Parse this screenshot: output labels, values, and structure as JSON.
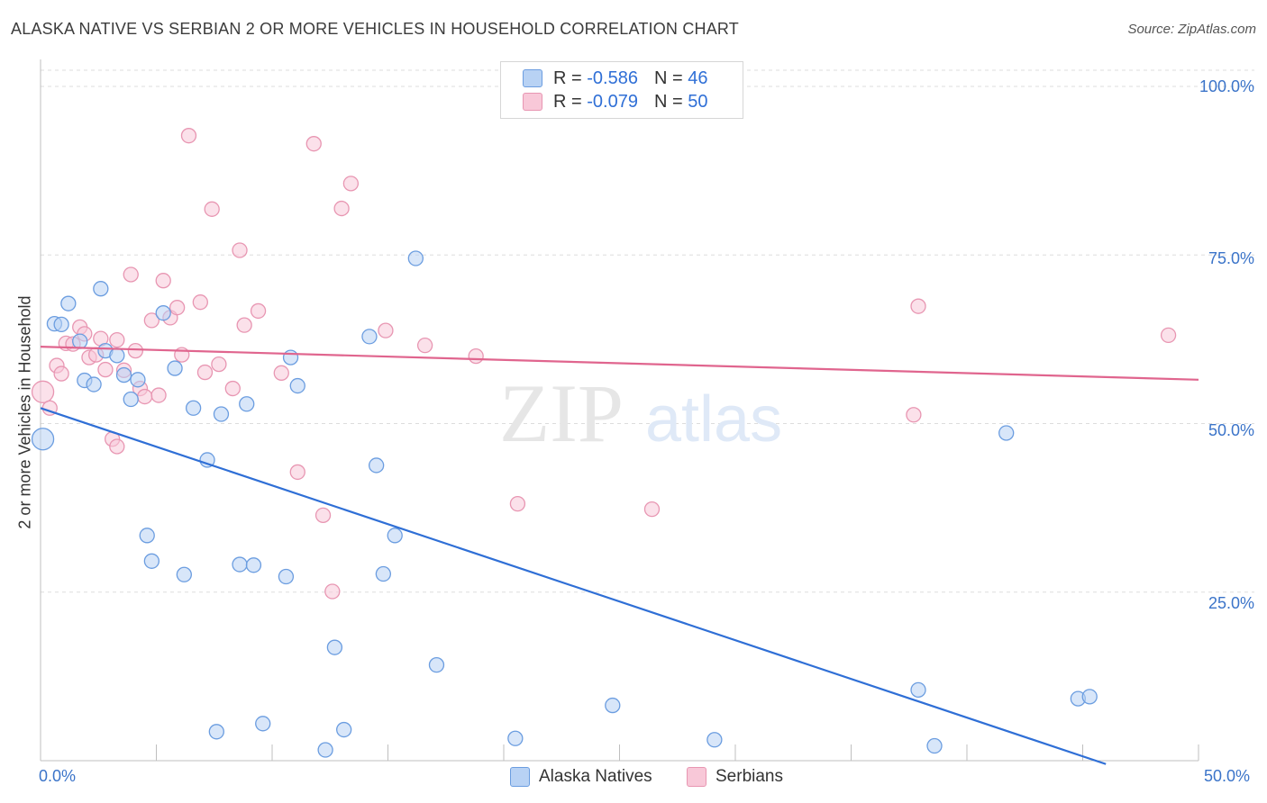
{
  "header": {
    "title": "ALASKA NATIVE VS SERBIAN 2 OR MORE VEHICLES IN HOUSEHOLD CORRELATION CHART",
    "source": "Source: ZipAtlas.com"
  },
  "legend": {
    "blue": {
      "r_label": "R =",
      "r_value": "-0.586",
      "n_label": "N =",
      "n_value": "46"
    },
    "pink": {
      "r_label": "R =",
      "r_value": "-0.079",
      "n_label": "N =",
      "n_value": "50"
    }
  },
  "watermark": {
    "zip": "ZIP",
    "atlas": "atlas"
  },
  "colors": {
    "blue_fill": "#b8d2f4",
    "blue_stroke": "#6b9de0",
    "blue_line": "#2f6fd6",
    "pink_fill": "#f8c8d8",
    "pink_stroke": "#e896b2",
    "pink_line": "#e0658e",
    "tick_text": "#3b74c9"
  },
  "chart_data": {
    "type": "scatter",
    "xlabel": "",
    "ylabel": "2 or more Vehicles in Household",
    "xlim": [
      0,
      50
    ],
    "ylim": [
      0,
      100
    ],
    "x_tick_labels": [
      "0.0%",
      "50.0%"
    ],
    "y_ticks": [
      25,
      50,
      75,
      100
    ],
    "y_tick_labels": [
      "25.0%",
      "50.0%",
      "75.0%",
      "100.0%"
    ],
    "grid": true,
    "legend_position": "top-center",
    "series": [
      {
        "name": "Alaska Natives",
        "color": "#6b9de0",
        "trend": {
          "x0": 0,
          "y0": 52.3,
          "x1": 46,
          "y1": -0.5
        },
        "points": [
          [
            0.1,
            47.7
          ],
          [
            0.6,
            64.8
          ],
          [
            0.9,
            64.7
          ],
          [
            1.2,
            67.8
          ],
          [
            1.7,
            62.2
          ],
          [
            1.9,
            56.4
          ],
          [
            2.3,
            55.8
          ],
          [
            2.6,
            70.0
          ],
          [
            2.8,
            60.8
          ],
          [
            3.3,
            60.1
          ],
          [
            3.6,
            57.2
          ],
          [
            3.9,
            53.6
          ],
          [
            4.2,
            56.5
          ],
          [
            4.6,
            33.4
          ],
          [
            4.8,
            29.6
          ],
          [
            5.3,
            66.4
          ],
          [
            5.8,
            58.2
          ],
          [
            6.2,
            27.6
          ],
          [
            6.6,
            52.3
          ],
          [
            7.2,
            44.6
          ],
          [
            7.6,
            4.3
          ],
          [
            7.8,
            51.4
          ],
          [
            8.6,
            29.1
          ],
          [
            8.9,
            52.9
          ],
          [
            9.2,
            29.0
          ],
          [
            9.6,
            5.5
          ],
          [
            10.6,
            27.3
          ],
          [
            10.8,
            59.8
          ],
          [
            11.1,
            55.6
          ],
          [
            12.3,
            1.6
          ],
          [
            12.7,
            16.8
          ],
          [
            13.1,
            4.6
          ],
          [
            14.2,
            62.9
          ],
          [
            14.5,
            43.8
          ],
          [
            14.8,
            27.7
          ],
          [
            15.3,
            33.4
          ],
          [
            16.2,
            74.5
          ],
          [
            17.1,
            14.2
          ],
          [
            20.5,
            3.3
          ],
          [
            24.7,
            8.2
          ],
          [
            29.1,
            3.1
          ],
          [
            37.9,
            10.5
          ],
          [
            38.6,
            2.2
          ],
          [
            41.7,
            48.6
          ],
          [
            44.8,
            9.2
          ],
          [
            45.3,
            9.5
          ]
        ]
      },
      {
        "name": "Serbians",
        "color": "#e896b2",
        "trend": {
          "x0": 0,
          "y0": 61.4,
          "x1": 50,
          "y1": 56.5
        },
        "points": [
          [
            0.1,
            54.7
          ],
          [
            0.4,
            52.3
          ],
          [
            0.7,
            58.6
          ],
          [
            0.9,
            57.4
          ],
          [
            1.1,
            61.9
          ],
          [
            1.4,
            61.8
          ],
          [
            1.7,
            64.3
          ],
          [
            1.9,
            63.3
          ],
          [
            2.1,
            59.8
          ],
          [
            2.4,
            60.2
          ],
          [
            2.6,
            62.6
          ],
          [
            2.8,
            58.0
          ],
          [
            3.1,
            47.7
          ],
          [
            3.3,
            46.6
          ],
          [
            3.6,
            57.9
          ],
          [
            3.9,
            72.1
          ],
          [
            4.1,
            60.8
          ],
          [
            4.3,
            55.2
          ],
          [
            4.5,
            54.0
          ],
          [
            4.8,
            65.3
          ],
          [
            5.1,
            54.2
          ],
          [
            5.3,
            71.2
          ],
          [
            5.6,
            65.7
          ],
          [
            5.9,
            67.2
          ],
          [
            6.1,
            60.2
          ],
          [
            6.4,
            92.7
          ],
          [
            6.9,
            68.0
          ],
          [
            7.1,
            57.6
          ],
          [
            7.4,
            81.8
          ],
          [
            7.7,
            58.8
          ],
          [
            8.3,
            55.2
          ],
          [
            8.6,
            75.7
          ],
          [
            8.8,
            64.6
          ],
          [
            9.4,
            66.7
          ],
          [
            10.4,
            57.5
          ],
          [
            11.1,
            42.8
          ],
          [
            11.8,
            91.5
          ],
          [
            12.2,
            36.4
          ],
          [
            12.6,
            25.1
          ],
          [
            13.0,
            81.9
          ],
          [
            13.4,
            85.6
          ],
          [
            14.9,
            63.8
          ],
          [
            16.6,
            61.6
          ],
          [
            18.8,
            60.0
          ],
          [
            20.6,
            38.1
          ],
          [
            26.4,
            37.3
          ],
          [
            37.7,
            51.3
          ],
          [
            37.9,
            67.4
          ],
          [
            48.7,
            63.1
          ],
          [
            3.3,
            62.4
          ]
        ]
      }
    ]
  }
}
